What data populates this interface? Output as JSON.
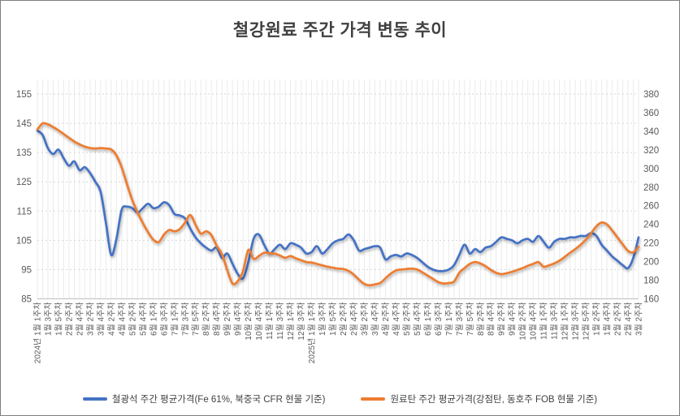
{
  "title": "철강원료 주간 가격 변동 추이",
  "legend": [
    {
      "key": "iron-ore",
      "label": "철광석 주간 평균가격(Fe 61%, 북중국 CFR 현물 기준)",
      "color": "#4472C4"
    },
    {
      "key": "coking-coal",
      "label": "원료탄 주간 평균가격(강점탄, 동호주 FOB 현물 기준)",
      "color": "#ED7D31"
    }
  ],
  "chart_data": {
    "type": "line",
    "title": "철강원료 주간 가격 변동 추이",
    "legend_position": "bottom",
    "grid": {
      "vertical_weekly_lines": true,
      "horizontal_dotted_lines": true
    },
    "x_axis": {
      "label_every": 2,
      "tick_labels": [
        "2024년 1월 1주차",
        "1월 3주차",
        "1월 5주차",
        "2월 2주차",
        "2월 4주차",
        "3월 2주차",
        "3월 4주차",
        "4월 2주차",
        "4월 4주차",
        "5월 2주차",
        "5월 4주차",
        "6월 1주차",
        "6월 3주차",
        "7월 1주차",
        "7월 3주차",
        "7월 5주차",
        "8월 2주차",
        "8월 4주차",
        "9월 2주차",
        "9월 4주차",
        "10월 2주차",
        "10월 4주차",
        "11월 1주차",
        "11월 3주차",
        "12월 1주차",
        "12월 3주차",
        "2025년 1월 1주차",
        "1월 3주차",
        "1월 5주차",
        "2월 2주차",
        "2월 4주차",
        "3월 2주차",
        "3월 4주차",
        "4월 2주차",
        "4월 4주차",
        "5월 2주차",
        "5월 4주차",
        "6월 1주차",
        "6월 3주차",
        "7월 1주차",
        "7월 3주차",
        "7월 5주차",
        "8월 2주차",
        "8월 4주차",
        "9월 2주차",
        "9월 4주차",
        "10월 2주차",
        "10월 4주차",
        "11월 1주차",
        "11월 3주차",
        "12월 1주차",
        "12월 3주차",
        "12월 5주차",
        "1월 2주차",
        "1월 4주차",
        "2월 2주차",
        "2월 4주차",
        "3월 2주차"
      ]
    },
    "left_axis": {
      "min": 85,
      "max": 155,
      "tick_step": 10,
      "ticks": [
        155,
        145,
        135,
        125,
        115,
        105,
        95,
        85
      ]
    },
    "right_axis": {
      "min": 160,
      "max": 380,
      "tick_step": 20,
      "ticks": [
        380,
        360,
        340,
        320,
        300,
        280,
        260,
        240,
        220,
        200,
        180,
        160
      ]
    },
    "series": [
      {
        "key": "iron-ore",
        "name": "철광석 주간 평균가격(Fe 61%, 북중국 CFR 현물 기준)",
        "axis": "left",
        "color": "#4472C4",
        "values": [
          142.5,
          141,
          136.5,
          134.5,
          136,
          133,
          130.5,
          132,
          129,
          130,
          128,
          125,
          121.5,
          111,
          100,
          105.5,
          115.5,
          116.5,
          116,
          114.5,
          116,
          117.5,
          116,
          116.5,
          118,
          117,
          114,
          113.5,
          112.5,
          109,
          106,
          104,
          102.5,
          101.5,
          102.5,
          99,
          100.5,
          97,
          93.5,
          92,
          97.5,
          105.5,
          107,
          103.5,
          100.5,
          102,
          103.5,
          102,
          104,
          103.5,
          102.5,
          100.5,
          101,
          103,
          100.5,
          102,
          104,
          105,
          105.5,
          107,
          105,
          101.5,
          102,
          102.5,
          103,
          102.5,
          98.5,
          99.5,
          100,
          99.5,
          100.5,
          100,
          99,
          97.5,
          96,
          95,
          94.5,
          94.5,
          95,
          96.5,
          100,
          103.5,
          100.5,
          102,
          101,
          102.5,
          103,
          104.5,
          106,
          105.5,
          105,
          104,
          105,
          105.5,
          104.5,
          106.5,
          104.5,
          102.5,
          104.5,
          105.5,
          105.5,
          106,
          106,
          106.5,
          106.5,
          107.5,
          106.5,
          103.5,
          101.5,
          99.5,
          98,
          96.5,
          95.5,
          99,
          106
        ]
      },
      {
        "key": "coking-coal",
        "name": "원료탄 주간 평균가격(강점탄, 동호주 FOB 현물 기준)",
        "axis": "right",
        "color": "#ED7D31",
        "values": [
          342,
          348.5,
          347.5,
          344.5,
          341,
          337,
          333,
          329,
          326,
          323.5,
          322,
          321.5,
          322,
          321.5,
          320.5,
          314,
          301,
          283,
          266,
          253,
          241.5,
          231.5,
          223.5,
          221,
          229,
          234,
          232.5,
          235,
          242,
          250,
          239.5,
          230,
          232.5,
          228.5,
          217,
          208,
          191,
          176.5,
          179,
          190,
          212.5,
          203,
          206,
          209.5,
          209,
          208.5,
          206.5,
          204,
          206,
          203.5,
          201.5,
          199.5,
          199,
          197.5,
          196,
          194.5,
          193.5,
          192.5,
          192,
          190,
          186,
          180.5,
          176,
          174.5,
          175.5,
          177,
          182,
          187,
          190.5,
          191.5,
          192,
          192.5,
          191.5,
          188.5,
          185,
          181.5,
          178,
          176.5,
          177,
          178.5,
          188,
          193,
          197.5,
          199.5,
          198,
          195,
          191,
          188,
          186.5,
          187.5,
          189,
          191,
          193,
          195.5,
          197.5,
          199.5,
          194.5,
          196,
          198,
          201,
          205,
          209.5,
          213.5,
          218,
          223.5,
          230.5,
          238,
          242,
          240,
          233.5,
          226,
          218.5,
          211.5,
          210,
          216
        ]
      }
    ]
  }
}
